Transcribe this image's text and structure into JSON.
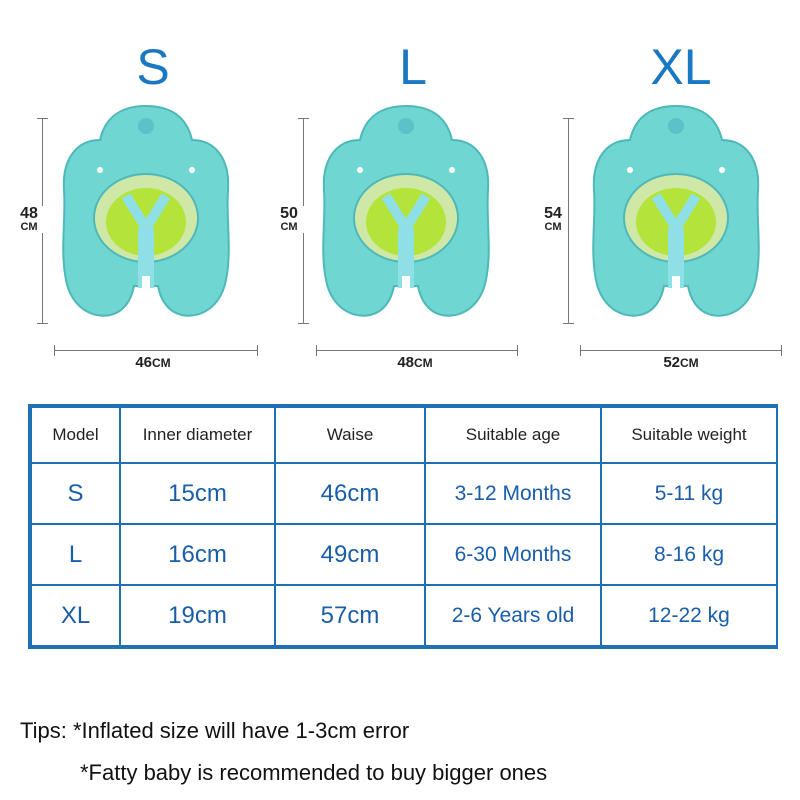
{
  "sizes": [
    {
      "label": "S",
      "height": "48",
      "height_unit": "CM",
      "width": "46",
      "width_unit": "CM"
    },
    {
      "label": "L",
      "height": "50",
      "height_unit": "CM",
      "width": "48",
      "width_unit": "CM"
    },
    {
      "label": "XL",
      "height": "54",
      "height_unit": "CM",
      "width": "52",
      "width_unit": "CM"
    }
  ],
  "table": {
    "headers": [
      "Model",
      "Inner diameter",
      "Waise",
      "Suitable age",
      "Suitable weight"
    ],
    "rows": [
      [
        "S",
        "15cm",
        "46cm",
        "3-12 Months",
        "5-11 kg"
      ],
      [
        "L",
        "16cm",
        "49cm",
        "6-30 Months",
        "8-16 kg"
      ],
      [
        "XL",
        "19cm",
        "57cm",
        "2-6 Years old",
        "12-22 kg"
      ]
    ]
  },
  "tips": {
    "line1": "Tips: *Inflated size will have 1-3cm error",
    "line2": "*Fatty baby is recommended to buy bigger ones"
  },
  "colors": {
    "accent_blue": "#1a78c2",
    "table_border": "#1f6fb4",
    "float_body": "#6fd6d2",
    "float_seat": "#b4e43a"
  },
  "icons": [
    "swim-float-image"
  ]
}
